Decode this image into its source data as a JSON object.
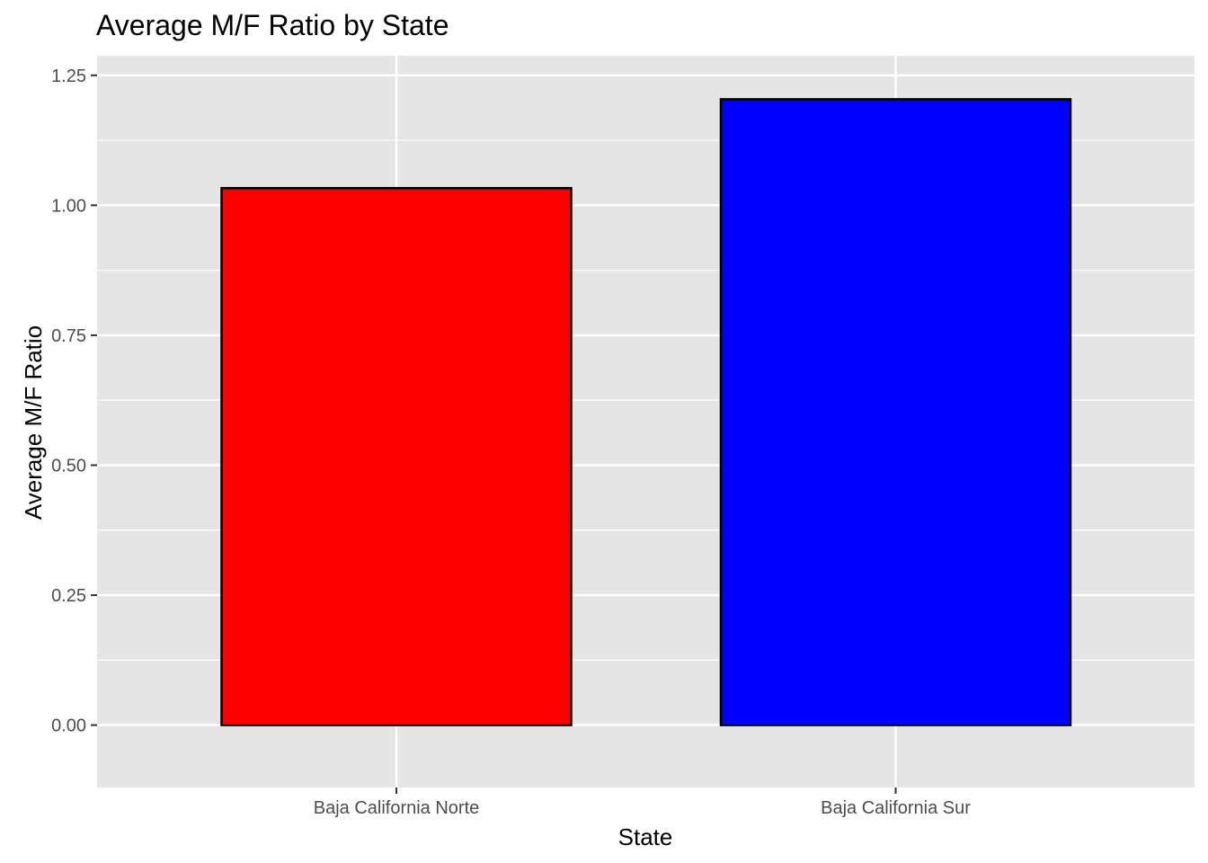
{
  "chart_data": {
    "type": "bar",
    "title": "Average M/F Ratio by State",
    "xlabel": "State",
    "ylabel": "Average M/F Ratio",
    "categories": [
      "Baja California Norte",
      "Baja California Sur"
    ],
    "values": [
      1.033,
      1.204
    ],
    "bar_colors": [
      "#ff0000",
      "#0000ff"
    ],
    "bar_outline_color": "#000000",
    "ylim": [
      -0.12,
      1.25
    ],
    "y_ticks": [
      0,
      0.25,
      0.5,
      0.75,
      1,
      1.25
    ],
    "y_tick_labels": [
      "0.00",
      "0.25",
      "0.50",
      "0.75",
      "1.00",
      "1.25"
    ],
    "panel_background": "#e5e5e5",
    "grid": true,
    "grid_color": "#ffffff",
    "legend": "none"
  }
}
